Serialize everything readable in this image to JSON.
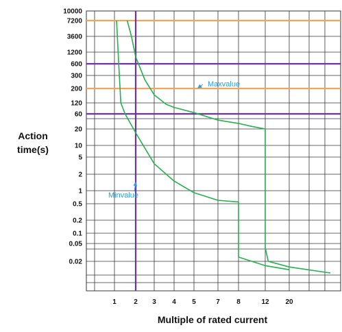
{
  "chart_data": {
    "type": "line",
    "title": "",
    "xlabel": "Multiple of rated current",
    "ylabel_lines": [
      "Action",
      "time(s)"
    ],
    "x_tick_labels": [
      "1",
      "2",
      "3",
      "4",
      "5",
      "7",
      "8",
      "12",
      "20"
    ],
    "y_tick_labels": [
      "10000",
      "7200",
      "3600",
      "1200",
      "600",
      "300",
      "200",
      "120",
      "60",
      "20",
      "10",
      "5",
      "2",
      "1",
      "0.5",
      "0.2",
      "0.1",
      "0.05",
      "0.02"
    ],
    "x_scale": "categorical (non-uniform multiples)",
    "y_scale": "non-uniform stepped",
    "grid": true,
    "reference_lines": [
      {
        "axis": "y",
        "value": 7200,
        "color": "#f5a25d"
      },
      {
        "axis": "y",
        "value": 600,
        "color": "#7030a0"
      },
      {
        "axis": "y",
        "value": 200,
        "color": "#f5a25d"
      },
      {
        "axis": "y",
        "value": 60,
        "color": "#7030a0"
      },
      {
        "axis": "x",
        "value": 2,
        "color": "#7030a0"
      }
    ],
    "series": [
      {
        "name": "Maxvalue",
        "color": "#22b14c",
        "points": [
          {
            "x": 1.6,
            "y": 7200
          },
          {
            "x": 1.8,
            "y": 3600
          },
          {
            "x": 2,
            "y": 900
          },
          {
            "x": 2.5,
            "y": 260
          },
          {
            "x": 3,
            "y": 160
          },
          {
            "x": 3.6,
            "y": 110
          },
          {
            "x": 4,
            "y": 90
          },
          {
            "x": 5,
            "y": 65
          },
          {
            "x": 7,
            "y": 38
          },
          {
            "x": 8,
            "y": 30
          },
          {
            "x": 10,
            "y": 24
          },
          {
            "x": 12,
            "y": 20
          },
          {
            "x": 12,
            "y": 0.04
          },
          {
            "x": 13,
            "y": 0.02
          },
          {
            "x": 20,
            "y": 0.015
          },
          {
            "x": 30,
            "y": 0.011
          }
        ]
      },
      {
        "name": "Minvalue",
        "color": "#22b14c",
        "points": [
          {
            "x": 1.1,
            "y": 7200
          },
          {
            "x": 1.2,
            "y": 600
          },
          {
            "x": 1.3,
            "y": 120
          },
          {
            "x": 1.5,
            "y": 60
          },
          {
            "x": 2,
            "y": 17
          },
          {
            "x": 3,
            "y": 3.5
          },
          {
            "x": 4,
            "y": 1.5
          },
          {
            "x": 5,
            "y": 0.9
          },
          {
            "x": 7,
            "y": 0.6
          },
          {
            "x": 8,
            "y": 0.55
          },
          {
            "x": 8,
            "y": 0.025
          },
          {
            "x": 12,
            "y": 0.016
          },
          {
            "x": 20,
            "y": 0.013
          }
        ]
      }
    ],
    "annotations": [
      {
        "text": "Maxvalue",
        "color": "#2a9fe0",
        "points_to": {
          "x": 4,
          "y": 90
        }
      },
      {
        "text": "Minvalue",
        "color": "#2a9fe0",
        "points_to": {
          "x": 2,
          "y": 1
        }
      }
    ]
  }
}
